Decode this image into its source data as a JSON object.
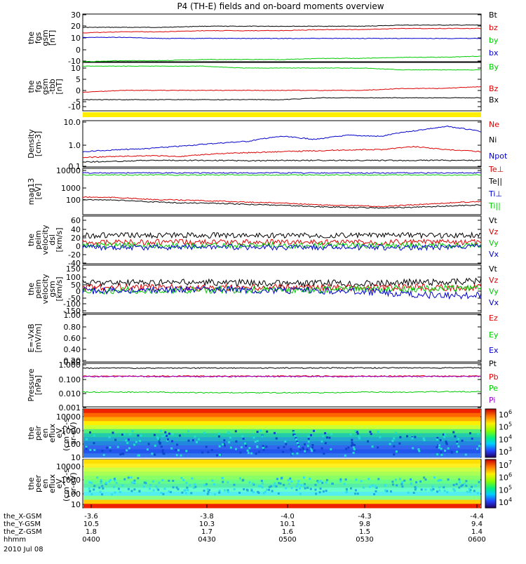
{
  "title": "P4 (TH-E) fields and on-board moments overview",
  "colors": {
    "black": "#000000",
    "red": "#dd0000",
    "green": "#00cc00",
    "blue": "#0000cc",
    "yellow": "#ffee00",
    "purple": "#9900cc"
  },
  "chart_data": [
    {
      "type": "line",
      "ylabel": [
        "the",
        "fgs",
        "gsm",
        "[nT]"
      ],
      "yticks": [
        "30",
        "20",
        "10",
        "0",
        "-10"
      ],
      "ylim": [
        -12,
        31
      ],
      "series": [
        {
          "name": "Bt",
          "color": "black",
          "values": [
            19,
            19,
            19,
            20,
            20,
            20,
            20,
            20,
            21,
            21,
            21
          ]
        },
        {
          "name": "bz",
          "color": "red",
          "values": [
            14,
            15,
            15,
            16,
            16,
            16,
            17,
            17,
            18,
            18,
            18
          ]
        },
        {
          "name": "by",
          "color": "green",
          "values": [
            -12,
            -11,
            -11,
            -10,
            -10,
            -10,
            -9,
            -9,
            -8,
            -8,
            -7
          ]
        },
        {
          "name": "bx",
          "color": "blue",
          "values": [
            10,
            10,
            9,
            9,
            9,
            9,
            9,
            9,
            9,
            9,
            9
          ]
        }
      ]
    },
    {
      "type": "line",
      "ylabel": [
        "the",
        "fgs",
        "gsm",
        "-tbb",
        "[nT]"
      ],
      "yticks": [
        "10",
        "5",
        "0",
        "-5",
        "-10"
      ],
      "ylim": [
        -13,
        13
      ],
      "series": [
        {
          "name": "By",
          "color": "green",
          "values": [
            11,
            11,
            11,
            11,
            10,
            10,
            10,
            10,
            9,
            9,
            9
          ]
        },
        {
          "name": "Bz",
          "color": "red",
          "values": [
            -3,
            -2,
            -2,
            -2,
            -2,
            -2,
            -2,
            -2,
            -1,
            -1,
            0
          ]
        },
        {
          "name": "Bx",
          "color": "black",
          "values": [
            -7,
            -7,
            -7,
            -7,
            -7,
            -7,
            -6,
            -6,
            -6,
            -6,
            -6
          ]
        }
      ]
    },
    {
      "type": "line",
      "scale": "log",
      "ylabel": [
        "Density",
        "[cm-3]"
      ],
      "yticks": [
        "10.0",
        "1.0",
        "0.1"
      ],
      "ylim": [
        0.1,
        13
      ],
      "series": [
        {
          "name": "Ne",
          "color": "red",
          "values": [
            0.27,
            0.3,
            0.33,
            0.3,
            0.4,
            0.45,
            0.5,
            0.55,
            0.6,
            0.62,
            0.85,
            0.6,
            0.5
          ]
        },
        {
          "name": "Ni",
          "color": "black",
          "values": [
            0.17,
            0.18,
            0.2,
            0.2,
            0.2,
            0.19,
            0.2,
            0.2,
            0.2,
            0.2,
            0.2,
            0.2,
            0.2
          ]
        },
        {
          "name": "Npot",
          "color": "blue",
          "values": [
            0.5,
            0.6,
            0.7,
            0.9,
            1.2,
            1.5,
            2.5,
            1.8,
            2.8,
            2.5,
            4.5,
            7,
            4
          ]
        }
      ]
    },
    {
      "type": "line",
      "scale": "log",
      "ylabel": [
        "mag13",
        "[eV]"
      ],
      "yticks": [
        "10000",
        "1000",
        "100"
      ],
      "ylim": [
        50,
        12000
      ],
      "series": [
        {
          "name": "Te⊥",
          "color": "red",
          "values": [
            400,
            380,
            300,
            280,
            250,
            220,
            200,
            160,
            150,
            130,
            160,
            200,
            240
          ]
        },
        {
          "name": "Te||",
          "color": "black",
          "values": [
            300,
            280,
            230,
            200,
            190,
            170,
            150,
            130,
            120,
            110,
            120,
            140,
            160
          ]
        },
        {
          "name": "Ti⊥",
          "color": "blue",
          "values": [
            7000,
            7000,
            7000,
            7000,
            7000,
            7000,
            7000,
            7000,
            7000,
            7000,
            7000,
            7000,
            7000
          ]
        },
        {
          "name": "Ti||",
          "color": "green",
          "values": [
            5500,
            5500,
            5500,
            5500,
            5500,
            5500,
            5500,
            5500,
            5500,
            5500,
            5500,
            5500,
            5500
          ]
        }
      ]
    },
    {
      "type": "line",
      "ylabel": [
        "the",
        "peim",
        "velocity",
        "dsl",
        "[km/s]"
      ],
      "yticks": [
        "60",
        "40",
        "20",
        "0",
        "-20",
        "-40"
      ],
      "ylim": [
        -42,
        62
      ],
      "series": [
        {
          "name": "Vt",
          "color": "black",
          "values": [
            20,
            20,
            20,
            20,
            20,
            20,
            20,
            20,
            20,
            20,
            20
          ]
        },
        {
          "name": "Vz",
          "color": "red",
          "values": [
            5,
            5,
            5,
            5,
            5,
            5,
            5,
            5,
            5,
            5,
            5
          ]
        },
        {
          "name": "Vy",
          "color": "green",
          "values": [
            -2,
            -2,
            -2,
            -2,
            -2,
            -2,
            -2,
            -2,
            -2,
            -2,
            -2
          ]
        },
        {
          "name": "Vx",
          "color": "blue",
          "values": [
            -6,
            -6,
            -6,
            -6,
            -6,
            -6,
            -6,
            -6,
            -6,
            -6,
            -6
          ]
        }
      ]
    },
    {
      "type": "line",
      "ylabel": [
        "the",
        "peim",
        "velocity",
        "gsm",
        "[km/s]"
      ],
      "yticks": [
        "150",
        "100",
        "50",
        "0",
        "-50",
        "-100",
        "-150"
      ],
      "ylim": [
        -150,
        150
      ],
      "series": [
        {
          "name": "Vt",
          "color": "black",
          "values": [
            40,
            40,
            40,
            40,
            40,
            35,
            35,
            35,
            40,
            45,
            50
          ]
        },
        {
          "name": "Vz",
          "color": "red",
          "values": [
            10,
            10,
            10,
            10,
            10,
            10,
            10,
            10,
            10,
            10,
            10
          ]
        },
        {
          "name": "Vy",
          "color": "green",
          "values": [
            -10,
            -10,
            -5,
            -5,
            -5,
            -5,
            -5,
            0,
            0,
            5,
            5
          ]
        },
        {
          "name": "Vx",
          "color": "blue",
          "values": [
            -10,
            -10,
            -5,
            -5,
            -5,
            -10,
            -10,
            -15,
            -30,
            -40,
            -40
          ]
        }
      ]
    },
    {
      "type": "line",
      "ylabel": [
        "E=-VxB",
        "[mV/m]"
      ],
      "yticks": [
        "1.00",
        "0.80",
        "0.60",
        "0.40",
        "0.20",
        "0.00"
      ],
      "ylim": [
        0,
        1
      ],
      "series": [
        {
          "name": "Ez",
          "color": "red",
          "values": []
        },
        {
          "name": "Ey",
          "color": "green",
          "values": []
        },
        {
          "name": "Ex",
          "color": "blue",
          "values": []
        }
      ]
    },
    {
      "type": "line",
      "scale": "log",
      "ylabel": [
        "Pressure",
        "[nPa]"
      ],
      "yticks": [
        "1.000",
        "0.100",
        "0.010",
        "0.001"
      ],
      "ylim": [
        0.001,
        1.2
      ],
      "series": [
        {
          "name": "Pt",
          "color": "black",
          "values": [
            0.55,
            0.55,
            0.55,
            0.56,
            0.56,
            0.56,
            0.57,
            0.57,
            0.58,
            0.58,
            0.58
          ]
        },
        {
          "name": "Pb",
          "color": "red",
          "values": [
            0.15,
            0.15,
            0.15,
            0.15,
            0.15,
            0.15,
            0.15,
            0.15,
            0.15,
            0.15,
            0.15
          ]
        },
        {
          "name": "Pe",
          "color": "green",
          "values": [
            0.011,
            0.011,
            0.011,
            0.01,
            0.01,
            0.01,
            0.01,
            0.011,
            0.011,
            0.012,
            0.012
          ]
        },
        {
          "name": "Pi",
          "color": "purple",
          "values": [
            0.14,
            0.14,
            0.14,
            0.14,
            0.14,
            0.14,
            0.14,
            0.14,
            0.14,
            0.14,
            0.14
          ]
        }
      ]
    },
    {
      "type": "heatmap",
      "ylabel": [
        "the",
        "peir",
        "en",
        "eflux",
        "eV",
        "(cm^2-s-",
        "sr-eV)"
      ],
      "yticks": [
        "10000",
        "1000",
        "100",
        "10"
      ],
      "colorbar_ticks": [
        "10^6",
        "10^5",
        "10^4",
        "10^3"
      ]
    },
    {
      "type": "heatmap",
      "ylabel": [
        "the",
        "peer",
        "en",
        "eflux",
        "eV",
        "(cm^2-s-",
        "sr-eV)"
      ],
      "yticks": [
        "10000",
        "1000",
        "100",
        "10"
      ],
      "colorbar_ticks": [
        "10^7",
        "10^6",
        "10^5",
        "10^4"
      ]
    }
  ],
  "xaxis": {
    "rows": [
      {
        "label": "the_X-GSM",
        "values": [
          "-3.6",
          "-3.8",
          "-4.0",
          "-4.3",
          "-4.4"
        ]
      },
      {
        "label": "the_Y-GSM",
        "values": [
          "10.5",
          "10.3",
          "10.1",
          "9.8",
          "9.4"
        ]
      },
      {
        "label": "the_Z-GSM",
        "values": [
          "1.8",
          "1.7",
          "1.6",
          "1.5",
          "1.4"
        ]
      },
      {
        "label": "hhmm",
        "values": [
          "0400",
          "0430",
          "0500",
          "0530",
          "0600"
        ]
      }
    ],
    "date": "2010 Jul 08"
  }
}
